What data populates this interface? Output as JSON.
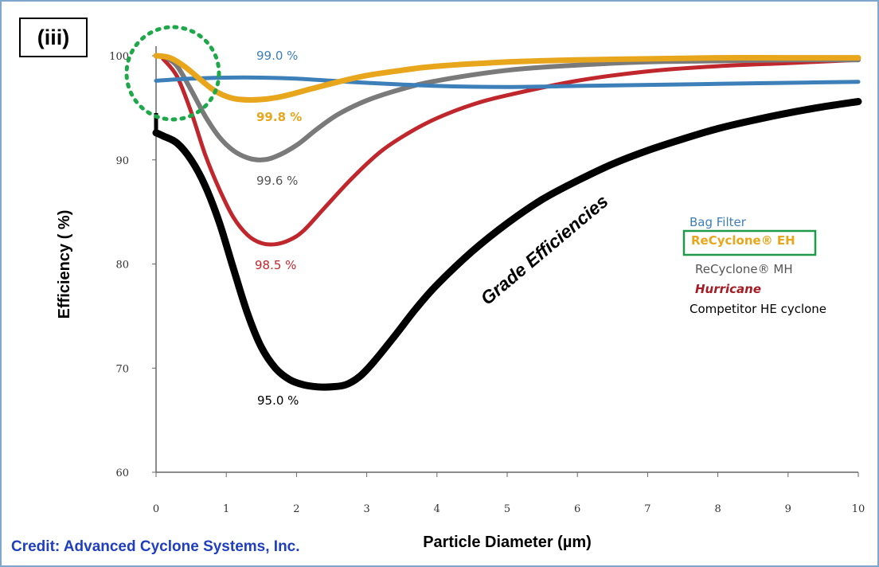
{
  "panel_label": "(iii)",
  "credit": "Credit: Advanced Cyclone Systems, Inc.",
  "chart_data": {
    "type": "line",
    "title": "",
    "xlabel": "Particle Diameter (µm)",
    "ylabel": "Efficiency ( %)",
    "xlim": [
      0,
      10
    ],
    "ylim": [
      60,
      100
    ],
    "x_ticks": [
      0,
      1,
      2,
      3,
      4,
      5,
      6,
      7,
      8,
      9,
      10
    ],
    "y_ticks": [
      60,
      70,
      80,
      90,
      100
    ],
    "grid": false,
    "legend_position": "right",
    "annotation": "Grade Efficiencies",
    "series": [
      {
        "name": "Bag Filter",
        "color": "#3d7fb8",
        "label": "99.0 %",
        "x": [
          0,
          0.5,
          1,
          1.5,
          2,
          2.5,
          3,
          4,
          5,
          6,
          7,
          8,
          9,
          10
        ],
        "y": [
          97.6,
          97.8,
          97.9,
          97.9,
          97.8,
          97.6,
          97.4,
          97.1,
          97.0,
          97.1,
          97.2,
          97.3,
          97.4,
          97.5
        ]
      },
      {
        "name": "ReCyclone® EH",
        "color": "#e8a61c",
        "label": "99.8 %",
        "x": [
          0,
          0.2,
          0.4,
          0.6,
          0.8,
          1.0,
          1.2,
          1.5,
          1.8,
          2.2,
          2.6,
          3,
          3.5,
          4,
          5,
          6,
          7,
          8,
          9,
          10
        ],
        "y": [
          100,
          99.8,
          99.0,
          97.9,
          96.8,
          96.1,
          95.8,
          95.8,
          96.1,
          96.8,
          97.5,
          98.1,
          98.6,
          99.0,
          99.4,
          99.6,
          99.7,
          99.8,
          99.8,
          99.8
        ]
      },
      {
        "name": "ReCyclone® MH",
        "color": "#7a7a7a",
        "label": "99.6 %",
        "x": [
          0.15,
          0.3,
          0.5,
          0.7,
          0.9,
          1.1,
          1.3,
          1.5,
          1.7,
          2.0,
          2.3,
          2.6,
          3,
          3.5,
          4,
          5,
          6,
          7,
          8,
          9,
          10
        ],
        "y": [
          99.8,
          99.0,
          96.7,
          94.2,
          92.2,
          90.9,
          90.2,
          90.0,
          90.3,
          91.4,
          93.0,
          94.4,
          95.7,
          96.8,
          97.6,
          98.6,
          99.1,
          99.4,
          99.5,
          99.6,
          99.6
        ]
      },
      {
        "name": "Hurricane",
        "color": "#c0272d",
        "label": "98.5 %",
        "x": [
          0.1,
          0.3,
          0.5,
          0.7,
          0.9,
          1.1,
          1.3,
          1.5,
          1.7,
          1.9,
          2.1,
          2.4,
          2.8,
          3.2,
          3.6,
          4,
          4.5,
          5,
          6,
          7,
          8,
          9,
          10
        ],
        "y": [
          99.7,
          98.0,
          94.6,
          90.5,
          87.2,
          84.5,
          82.8,
          82.0,
          81.9,
          82.3,
          83.2,
          85.4,
          88.3,
          90.8,
          92.6,
          94.0,
          95.3,
          96.2,
          97.6,
          98.5,
          99.0,
          99.3,
          99.6
        ]
      },
      {
        "name": "Competitor HE cyclone",
        "color": "#000000",
        "label": "95.0 %",
        "x": [
          0,
          0.1,
          0.3,
          0.5,
          0.7,
          0.9,
          1.1,
          1.3,
          1.5,
          1.7,
          1.9,
          2.1,
          2.3,
          2.5,
          2.7,
          2.9,
          3.1,
          3.4,
          3.7,
          4,
          4.5,
          5,
          5.5,
          6,
          6.5,
          7,
          7.5,
          8,
          8.5,
          9,
          9.5,
          10
        ],
        "y": [
          92.6,
          92.3,
          91.6,
          90.0,
          87.5,
          84.0,
          79.6,
          75.3,
          72.0,
          70.0,
          68.9,
          68.4,
          68.2,
          68.2,
          68.4,
          69.2,
          70.6,
          73.1,
          75.7,
          78.0,
          81.2,
          83.9,
          86.2,
          88.0,
          89.6,
          90.9,
          92.0,
          93.0,
          93.8,
          94.5,
          95.1,
          95.6
        ]
      }
    ]
  }
}
